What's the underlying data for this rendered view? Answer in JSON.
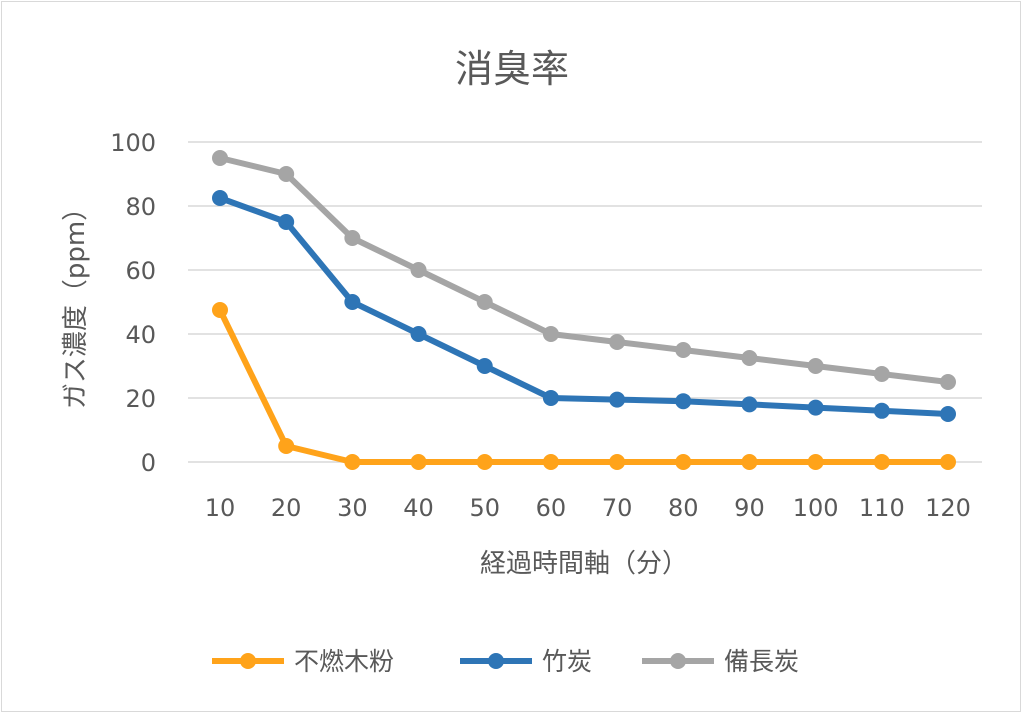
{
  "chart_data": {
    "type": "line",
    "title": "消臭率",
    "xlabel": "経過時間軸（分）",
    "ylabel": "ガス濃度（ppm）",
    "categories": [
      "10",
      "20",
      "30",
      "40",
      "50",
      "60",
      "70",
      "80",
      "90",
      "100",
      "110",
      "120"
    ],
    "ylim": [
      0,
      100
    ],
    "yticks": [
      "0",
      "20",
      "40",
      "60",
      "80",
      "100"
    ],
    "grid": true,
    "legend_position": "bottom",
    "series": [
      {
        "name": "不燃木粉",
        "color": "#ffa31a",
        "values": [
          47.5,
          5,
          0,
          0,
          0,
          0,
          0,
          0,
          0,
          0,
          0,
          0
        ]
      },
      {
        "name": "竹炭",
        "color": "#2e75b6",
        "values": [
          82.5,
          75,
          50,
          40,
          30,
          20,
          19.5,
          19,
          18,
          17,
          16,
          15
        ]
      },
      {
        "name": "備長炭",
        "color": "#a5a5a5",
        "values": [
          95,
          90,
          70,
          60,
          50,
          40,
          37.5,
          35,
          32.5,
          30,
          27.5,
          25
        ]
      }
    ]
  }
}
